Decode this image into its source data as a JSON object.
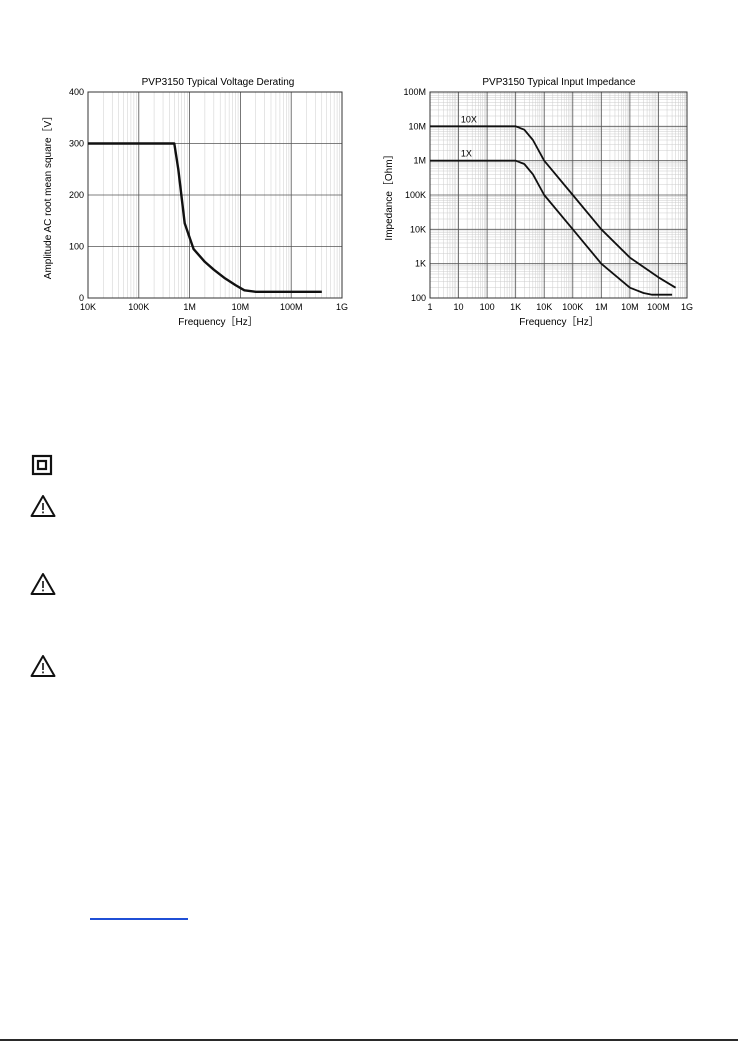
{
  "chart_data": [
    {
      "type": "line",
      "title": "PVP3150 Typical Voltage Derating",
      "xlabel": "Frequency［Hz］",
      "ylabel": "Amplitude AC root mean square［V］",
      "x_scale": "log",
      "xlim": [
        10000,
        1000000000
      ],
      "ylim": [
        0,
        400
      ],
      "x_ticks": [
        10000,
        100000,
        1000000,
        10000000,
        100000000,
        1000000000
      ],
      "x_tick_labels": [
        "10K",
        "100K",
        "1M",
        "10M",
        "100M",
        "1G"
      ],
      "y_ticks": [
        0,
        100,
        200,
        300,
        400
      ],
      "y_tick_labels": [
        "0",
        "100",
        "200",
        "300",
        "400"
      ],
      "grid": true,
      "series": [
        {
          "x": [
            10000,
            500000,
            600000,
            800000,
            1200000,
            2000000,
            3000000,
            5000000,
            8000000,
            12000000,
            20000000,
            50000000,
            100000000,
            400000000
          ],
          "y": [
            300,
            300,
            250,
            145,
            95,
            70,
            55,
            38,
            25,
            15,
            12,
            12,
            12,
            12
          ]
        }
      ]
    },
    {
      "type": "line",
      "title": "PVP3150 Typical Input Impedance",
      "xlabel": "Frequency［Hz］",
      "ylabel": "Impedance［Ohm］",
      "x_scale": "log",
      "y_scale": "log",
      "xlim": [
        1,
        1000000000
      ],
      "ylim": [
        100,
        100000000
      ],
      "x_ticks": [
        1,
        10,
        100,
        1000,
        10000,
        100000,
        1000000,
        10000000,
        100000000,
        1000000000
      ],
      "x_tick_labels": [
        "1",
        "10",
        "100",
        "1K",
        "10K",
        "100K",
        "1M",
        "10M",
        "100M",
        "1G"
      ],
      "y_ticks": [
        100,
        1000,
        10000,
        100000,
        1000000,
        10000000,
        100000000
      ],
      "y_tick_labels": [
        "100",
        "1K",
        "10K",
        "100K",
        "1M",
        "10M",
        "100M"
      ],
      "grid": true,
      "series": [
        {
          "name": "10X",
          "x": [
            1,
            1000,
            2000,
            4000,
            10000,
            100000,
            1000000,
            10000000,
            100000000,
            400000000
          ],
          "y": [
            10000000,
            10000000,
            8000000,
            4000000,
            1000000,
            100000,
            10000,
            1500,
            400,
            200
          ]
        },
        {
          "name": "1X",
          "x": [
            1,
            1000,
            2000,
            4000,
            10000,
            100000,
            1000000,
            10000000,
            30000000,
            60000000,
            100000000,
            300000000
          ],
          "y": [
            1000000,
            1000000,
            800000,
            400000,
            100000,
            10000,
            1000,
            200,
            140,
            125,
            125,
            125
          ]
        }
      ]
    }
  ],
  "symbols": [
    {
      "icon": "double-insulation-icon"
    },
    {
      "icon": "warning-triangle-icon"
    },
    {
      "icon": "warning-triangle-icon"
    },
    {
      "icon": "warning-triangle-icon"
    }
  ],
  "colors": {
    "link": "#1f4fd6",
    "ink": "#111111",
    "grid": "#cccccc"
  }
}
